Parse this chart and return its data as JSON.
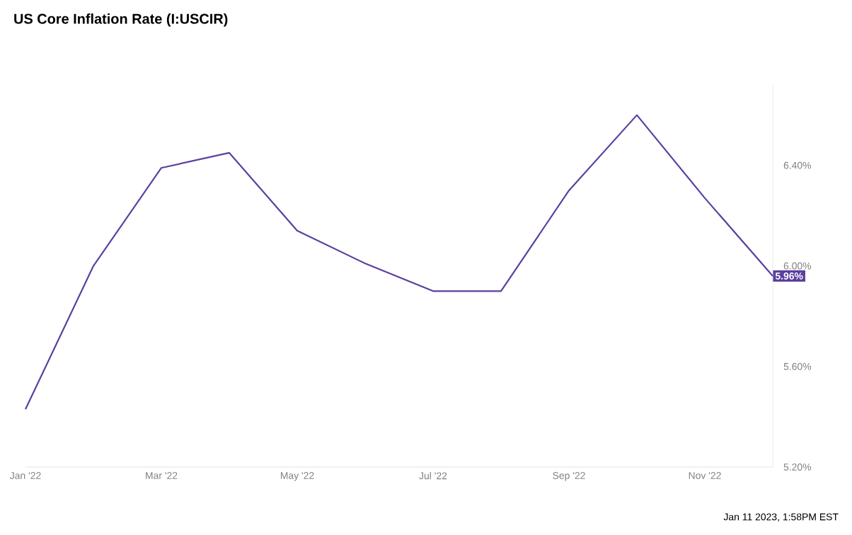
{
  "chart_data": {
    "type": "line",
    "title": "US Core Inflation Rate (I:USCIR)",
    "categories": [
      "Jan '22",
      null,
      "Mar '22",
      null,
      "May '22",
      null,
      "Jul '22",
      null,
      "Sep '22",
      null,
      "Nov '22",
      null
    ],
    "series": [
      {
        "color": "#5b3fa0",
        "values": [
          5.43,
          6.0,
          6.39,
          6.45,
          6.14,
          6.01,
          5.9,
          5.9,
          6.3,
          6.6,
          6.27,
          5.96
        ],
        "value_labels": [
          null,
          null,
          null,
          null,
          null,
          null,
          null,
          null,
          null,
          null,
          null,
          "5.96%"
        ]
      }
    ],
    "yticks": [
      {
        "value": 5.2,
        "label": "5.20%"
      },
      {
        "value": 5.6,
        "label": "5.60%"
      },
      {
        "value": 6.0,
        "label": "6.00%"
      },
      {
        "value": 6.4,
        "label": "6.40%"
      }
    ],
    "ylim": [
      5.2,
      6.72
    ],
    "line_style": "solid",
    "annotations": [
      "Jan 11 2023, 1:58PM EST"
    ]
  }
}
